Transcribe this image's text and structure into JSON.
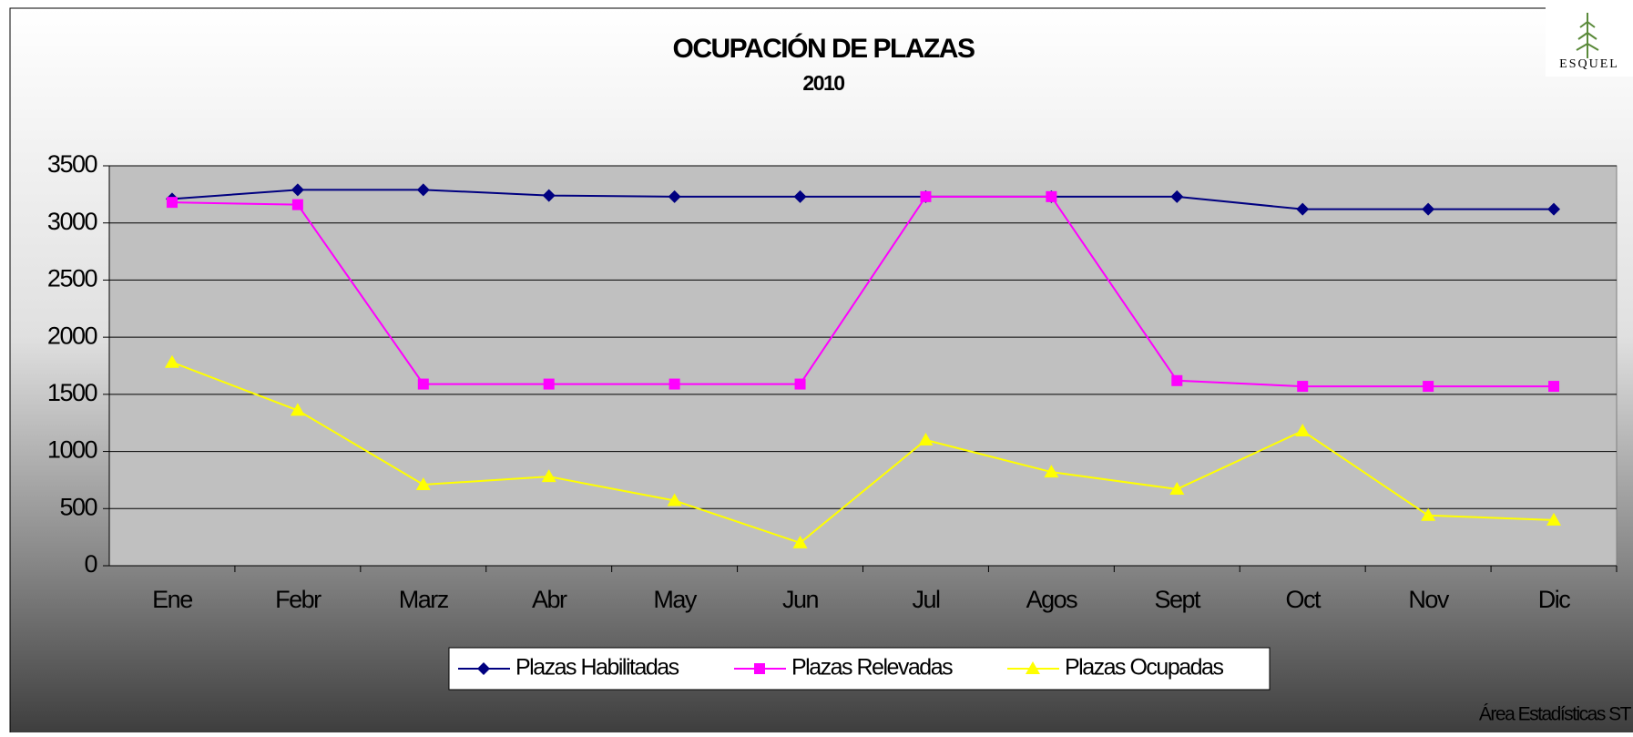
{
  "chart_data": {
    "type": "line",
    "title": "OCUPACIÓN DE PLAZAS",
    "subtitle": "2010",
    "logo": "ESQUEL",
    "footer": "Área Estadísticas ST",
    "categories": [
      "Ene",
      "Febr",
      "Marz",
      "Abr",
      "May",
      "Jun",
      "Jul",
      "Agos",
      "Sept",
      "Oct",
      "Nov",
      "Dic"
    ],
    "series": [
      {
        "name": "Plazas Habilitadas",
        "color": "#000080",
        "marker": "diamond",
        "values": [
          3210,
          3290,
          3290,
          3240,
          3230,
          3230,
          3230,
          3230,
          3230,
          3120,
          3120,
          3120
        ]
      },
      {
        "name": "Plazas Relevadas",
        "color": "#ff00ff",
        "marker": "square",
        "values": [
          3180,
          3160,
          1590,
          1590,
          1590,
          1590,
          3230,
          3230,
          1620,
          1570,
          1570,
          1570
        ]
      },
      {
        "name": "Plazas Ocupadas",
        "color": "#ffff00",
        "marker": "triangle",
        "values": [
          1780,
          1360,
          710,
          780,
          570,
          200,
          1100,
          820,
          670,
          1180,
          440,
          400
        ]
      }
    ],
    "ylim": [
      0,
      3500
    ],
    "yticks": [
      0,
      500,
      1000,
      1500,
      2000,
      2500,
      3000,
      3500
    ],
    "grid": true,
    "legend": "bottom"
  }
}
